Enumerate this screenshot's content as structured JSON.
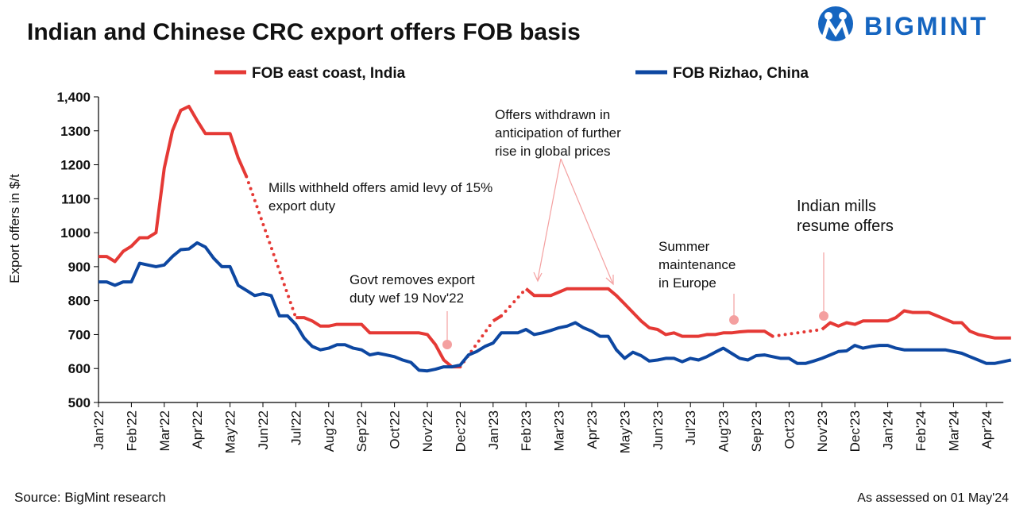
{
  "chart_data": {
    "type": "line",
    "title": "Indian and Chinese CRC export offers FOB basis",
    "brand": "BIGMINT",
    "y_label": "Export offers in $/t",
    "source": "Source: BigMint research",
    "note": "As assessed on 01 May'24",
    "categories": [
      "Jan'22",
      null,
      null,
      null,
      "Feb'22",
      null,
      null,
      null,
      "Mar'22",
      null,
      null,
      null,
      "Apr'22",
      null,
      null,
      null,
      "May'22",
      null,
      null,
      null,
      "Jun'22",
      null,
      null,
      null,
      "Jul'22",
      null,
      null,
      null,
      "Aug'22",
      null,
      null,
      null,
      "Sep'22",
      null,
      null,
      null,
      "Oct'22",
      null,
      null,
      null,
      "Nov'22",
      null,
      null,
      null,
      "Dec'22",
      null,
      null,
      null,
      "Jan'23",
      null,
      null,
      null,
      "Feb'23",
      null,
      null,
      null,
      "Mar'23",
      null,
      null,
      null,
      "Apr'23",
      null,
      null,
      null,
      "May'23",
      null,
      null,
      null,
      "Jun'23",
      null,
      null,
      null,
      "Jul'23",
      null,
      null,
      null,
      "Aug'23",
      null,
      null,
      null,
      "Sep'23",
      null,
      null,
      null,
      "Oct'23",
      null,
      null,
      null,
      "Nov'23",
      null,
      null,
      null,
      "Dec'23",
      null,
      null,
      null,
      "Jan'24",
      null,
      null,
      null,
      "Feb'24",
      null,
      null,
      null,
      "Mar'24",
      null,
      null,
      null,
      "Apr'24",
      null,
      null,
      null
    ],
    "series": [
      {
        "name": "FOB east coast, India",
        "color": "#e53935",
        "gap_style": "dotted",
        "values": [
          930,
          930,
          915,
          945,
          960,
          985,
          985,
          1000,
          1190,
          1300,
          1360,
          1372,
          1330,
          1292,
          1292,
          1292,
          1292,
          1220,
          1165,
          null,
          null,
          null,
          null,
          null,
          750,
          750,
          740,
          725,
          725,
          730,
          730,
          730,
          730,
          705,
          705,
          705,
          705,
          705,
          705,
          705,
          700,
          670,
          625,
          605,
          605,
          null,
          null,
          null,
          740,
          755,
          null,
          null,
          835,
          815,
          815,
          815,
          825,
          835,
          835,
          835,
          835,
          835,
          835,
          815,
          790,
          765,
          740,
          720,
          715,
          700,
          705,
          695,
          695,
          695,
          700,
          700,
          705,
          705,
          708,
          710,
          710,
          710,
          695,
          null,
          null,
          null,
          null,
          null,
          715,
          735,
          725,
          735,
          730,
          740,
          740,
          740,
          740,
          750,
          770,
          765,
          765,
          765,
          755,
          745,
          735,
          735,
          710,
          700,
          695,
          690,
          690,
          690
        ]
      },
      {
        "name": "FOB Rizhao, China",
        "color": "#0d47a1",
        "values": [
          855,
          855,
          845,
          855,
          855,
          910,
          905,
          900,
          905,
          930,
          950,
          952,
          970,
          958,
          925,
          900,
          900,
          845,
          830,
          815,
          820,
          815,
          755,
          755,
          730,
          690,
          665,
          655,
          660,
          670,
          670,
          660,
          655,
          640,
          645,
          640,
          635,
          625,
          618,
          595,
          593,
          598,
          605,
          605,
          610,
          640,
          650,
          665,
          675,
          705,
          705,
          705,
          715,
          700,
          705,
          712,
          720,
          725,
          735,
          720,
          710,
          695,
          695,
          655,
          630,
          648,
          638,
          622,
          625,
          630,
          630,
          620,
          630,
          625,
          635,
          648,
          660,
          645,
          630,
          625,
          638,
          640,
          635,
          630,
          630,
          615,
          615,
          622,
          630,
          640,
          650,
          652,
          668,
          660,
          665,
          668,
          668,
          660,
          655,
          655,
          655,
          655,
          655,
          655,
          650,
          645,
          635,
          625,
          615,
          615,
          620,
          625
        ]
      }
    ],
    "ylim": [
      500,
      1400
    ],
    "yticks": [
      500,
      600,
      700,
      800,
      900,
      1000,
      1100,
      1200,
      1300,
      {
        "value": 1400,
        "label": "1,400"
      }
    ],
    "annotations": [
      [
        "Mills withheld offers amid levy of 15%",
        "export duty"
      ],
      [
        "Govt removes export",
        "duty wef 19 Nov'22"
      ],
      [
        "Offers withdrawn in",
        "anticipation of further",
        "rise in global prices"
      ],
      [
        "Summer",
        "maintenance",
        "in Europe"
      ],
      [
        "Indian mills",
        "resume offers"
      ]
    ]
  }
}
